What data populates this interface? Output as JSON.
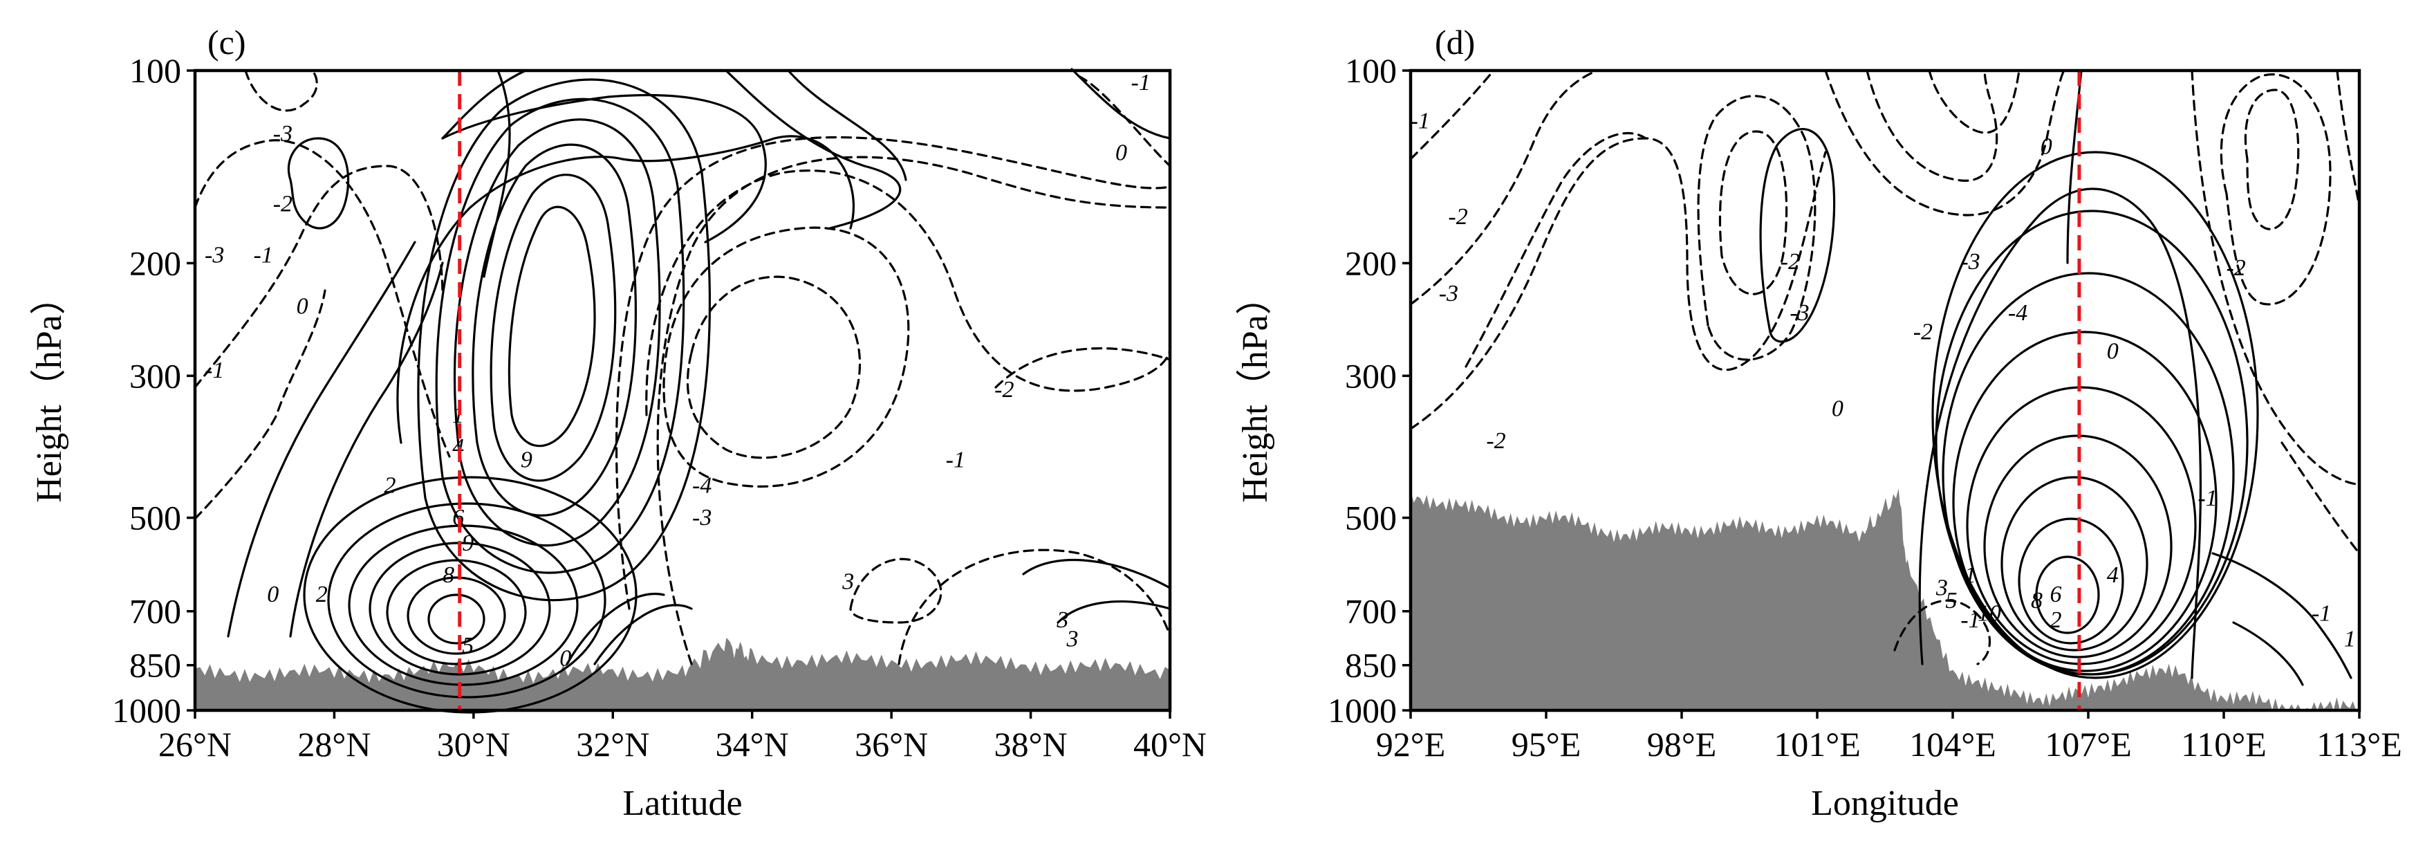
{
  "colors": {
    "contour": "#000000",
    "terrain": "#7f7f7f",
    "marker": "#e8161b",
    "frame": "#000000"
  },
  "chart_data": [
    {
      "panel_label": "(c)",
      "type": "contour",
      "xlabel": "Latitude",
      "ylabel": "Height（hPa）",
      "x_unit": "degrees north",
      "xlim": [
        26,
        40
      ],
      "x_ticks": [
        26,
        28,
        30,
        32,
        34,
        36,
        38,
        40
      ],
      "x_tick_labels": [
        "26°N",
        "28°N",
        "30°N",
        "32°N",
        "34°N",
        "36°N",
        "38°N",
        "40°N"
      ],
      "y_scale": "log",
      "ylim": [
        1000,
        100
      ],
      "y_ticks": [
        100,
        200,
        300,
        500,
        700,
        850,
        1000
      ],
      "y_tick_labels": [
        "100",
        "200",
        "300",
        "500",
        "700",
        "850",
        "1000"
      ],
      "marker_line_x": 29.8,
      "contour_labels": [
        "-1",
        "-3",
        "0",
        "-2",
        "-1",
        "0",
        "-3",
        "-1",
        "1",
        "4",
        "2",
        "9",
        "6",
        "9",
        "8",
        "-4",
        "-3",
        "-2",
        "-1",
        "3",
        "3",
        "0",
        "5",
        "2",
        "0",
        "3"
      ],
      "positive_features": [
        {
          "x": 31.0,
          "p": 380,
          "value": 9
        },
        {
          "x": 29.6,
          "p": 760,
          "value": 9
        }
      ],
      "negative_features": [
        {
          "x": 34.2,
          "p": 400,
          "value": -4
        }
      ],
      "terrain_p": [
        {
          "x": 26.0,
          "p": 875
        },
        {
          "x": 27.0,
          "p": 870
        },
        {
          "x": 28.0,
          "p": 880
        },
        {
          "x": 29.0,
          "p": 868
        },
        {
          "x": 30.0,
          "p": 860
        },
        {
          "x": 31.0,
          "p": 880
        },
        {
          "x": 32.0,
          "p": 870
        },
        {
          "x": 33.0,
          "p": 868
        },
        {
          "x": 33.6,
          "p": 785
        },
        {
          "x": 34.0,
          "p": 820
        },
        {
          "x": 35.0,
          "p": 840
        },
        {
          "x": 36.0,
          "p": 835
        },
        {
          "x": 37.0,
          "p": 840
        },
        {
          "x": 38.0,
          "p": 845
        },
        {
          "x": 39.0,
          "p": 860
        },
        {
          "x": 40.0,
          "p": 865
        }
      ]
    },
    {
      "panel_label": "(d)",
      "type": "contour",
      "xlabel": "Longitude",
      "ylabel": "Height（hPa）",
      "x_unit": "degrees east",
      "xlim": [
        92,
        113
      ],
      "x_ticks": [
        92,
        95,
        98,
        101,
        104,
        107,
        110,
        113
      ],
      "x_tick_labels": [
        "92°E",
        "95°E",
        "98°E",
        "101°E",
        "104°E",
        "107°E",
        "110°E",
        "113°E"
      ],
      "y_scale": "log",
      "ylim": [
        1000,
        100
      ],
      "y_ticks": [
        100,
        200,
        300,
        500,
        700,
        850,
        1000
      ],
      "y_tick_labels": [
        "100",
        "200",
        "300",
        "500",
        "700",
        "850",
        "1000"
      ],
      "marker_line_x": 106.8,
      "contour_labels": [
        "-1",
        "-2",
        "-3",
        "-2",
        "0",
        "-3",
        "-2",
        "0",
        "-4",
        "-2",
        "-3",
        "-2",
        "-1",
        "0",
        "-1",
        "2",
        "4",
        "6",
        "8",
        "10",
        "1",
        "3",
        "5",
        "-1",
        "1"
      ],
      "positive_features": [
        {
          "x": 106.7,
          "p": 700,
          "value": 10
        }
      ],
      "negative_features": [
        {
          "x": 111.0,
          "p": 220,
          "value": -4
        },
        {
          "x": 93.5,
          "p": 160,
          "value": -1
        }
      ],
      "terrain_p": [
        {
          "x": 92.0,
          "p": 470
        },
        {
          "x": 93.0,
          "p": 470
        },
        {
          "x": 94.0,
          "p": 505
        },
        {
          "x": 95.0,
          "p": 495
        },
        {
          "x": 96.0,
          "p": 520
        },
        {
          "x": 97.0,
          "p": 530
        },
        {
          "x": 98.0,
          "p": 520
        },
        {
          "x": 99.0,
          "p": 515
        },
        {
          "x": 100.0,
          "p": 520
        },
        {
          "x": 101.0,
          "p": 510
        },
        {
          "x": 102.0,
          "p": 530
        },
        {
          "x": 102.8,
          "p": 455
        },
        {
          "x": 103.0,
          "p": 600
        },
        {
          "x": 104.0,
          "p": 860
        },
        {
          "x": 105.0,
          "p": 940
        },
        {
          "x": 106.0,
          "p": 950
        },
        {
          "x": 107.0,
          "p": 945
        },
        {
          "x": 108.0,
          "p": 870
        },
        {
          "x": 109.0,
          "p": 880
        },
        {
          "x": 110.0,
          "p": 950
        },
        {
          "x": 111.0,
          "p": 980
        },
        {
          "x": 112.0,
          "p": 990
        },
        {
          "x": 113.0,
          "p": 995
        }
      ]
    }
  ]
}
